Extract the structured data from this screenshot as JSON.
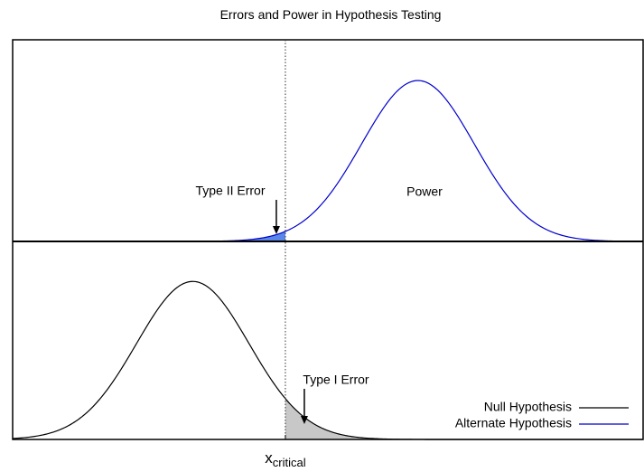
{
  "chart_data": {
    "type": "normal",
    "title": "Errors and Power in Hypothesis Testing",
    "xlim": [
      -3.2,
      8
    ],
    "ylim": [
      0,
      0.5
    ],
    "critical": 1.645,
    "critical_label": {
      "text": "x",
      "subscript": "critical"
    },
    "series": [
      {
        "name": "Null Hypothesis",
        "color": "#000000",
        "mean": 0,
        "sd": 1,
        "panel": "bottom"
      },
      {
        "name": "Alternate Hypothesis",
        "color": "#0000cc",
        "mean": 4,
        "sd": 1,
        "panel": "top"
      }
    ],
    "regions": [
      {
        "label": "Type II Error",
        "color": "#5a86ea",
        "series": 1,
        "side": "left"
      },
      {
        "label": "Type I Error",
        "color": "#c8c8c8",
        "series": 0,
        "side": "right"
      }
    ],
    "annotations": [
      "Power"
    ],
    "legend": "lower right"
  }
}
